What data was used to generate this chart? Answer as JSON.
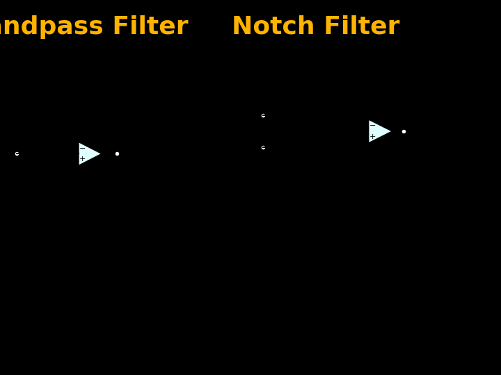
{
  "bg_color": "#000000",
  "title_left": "Bandpass Filter",
  "title_right": "Notch Filter",
  "title_color": "#FFB300",
  "title_fontsize": 26,
  "circuit_bg": "#FFFFFF",
  "plot_bg": "#FFFFFF"
}
